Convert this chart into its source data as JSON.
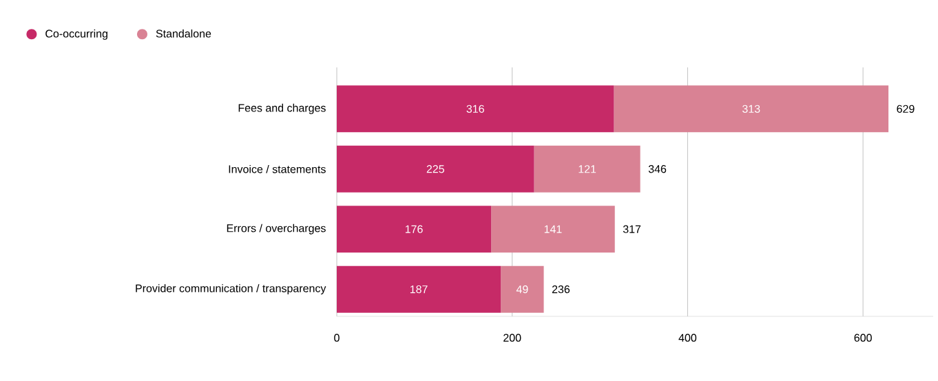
{
  "chart_data": {
    "type": "bar",
    "orientation": "horizontal",
    "stacked": true,
    "categories": [
      "Fees and charges",
      "Invoice / statements",
      "Errors / overcharges",
      "Provider communication / transparency"
    ],
    "series": [
      {
        "name": "Co-occurring",
        "color": "#c62a67",
        "values": [
          316,
          225,
          176,
          187
        ]
      },
      {
        "name": "Standalone",
        "color": "#d98294",
        "values": [
          313,
          121,
          141,
          49
        ]
      }
    ],
    "xlim": [
      0,
      680
    ],
    "xticks": [
      0,
      200,
      400,
      600
    ],
    "grid": "x",
    "legend": "top left",
    "data_labels": true,
    "totals": [
      "629",
      "346",
      "317",
      "236"
    ]
  }
}
